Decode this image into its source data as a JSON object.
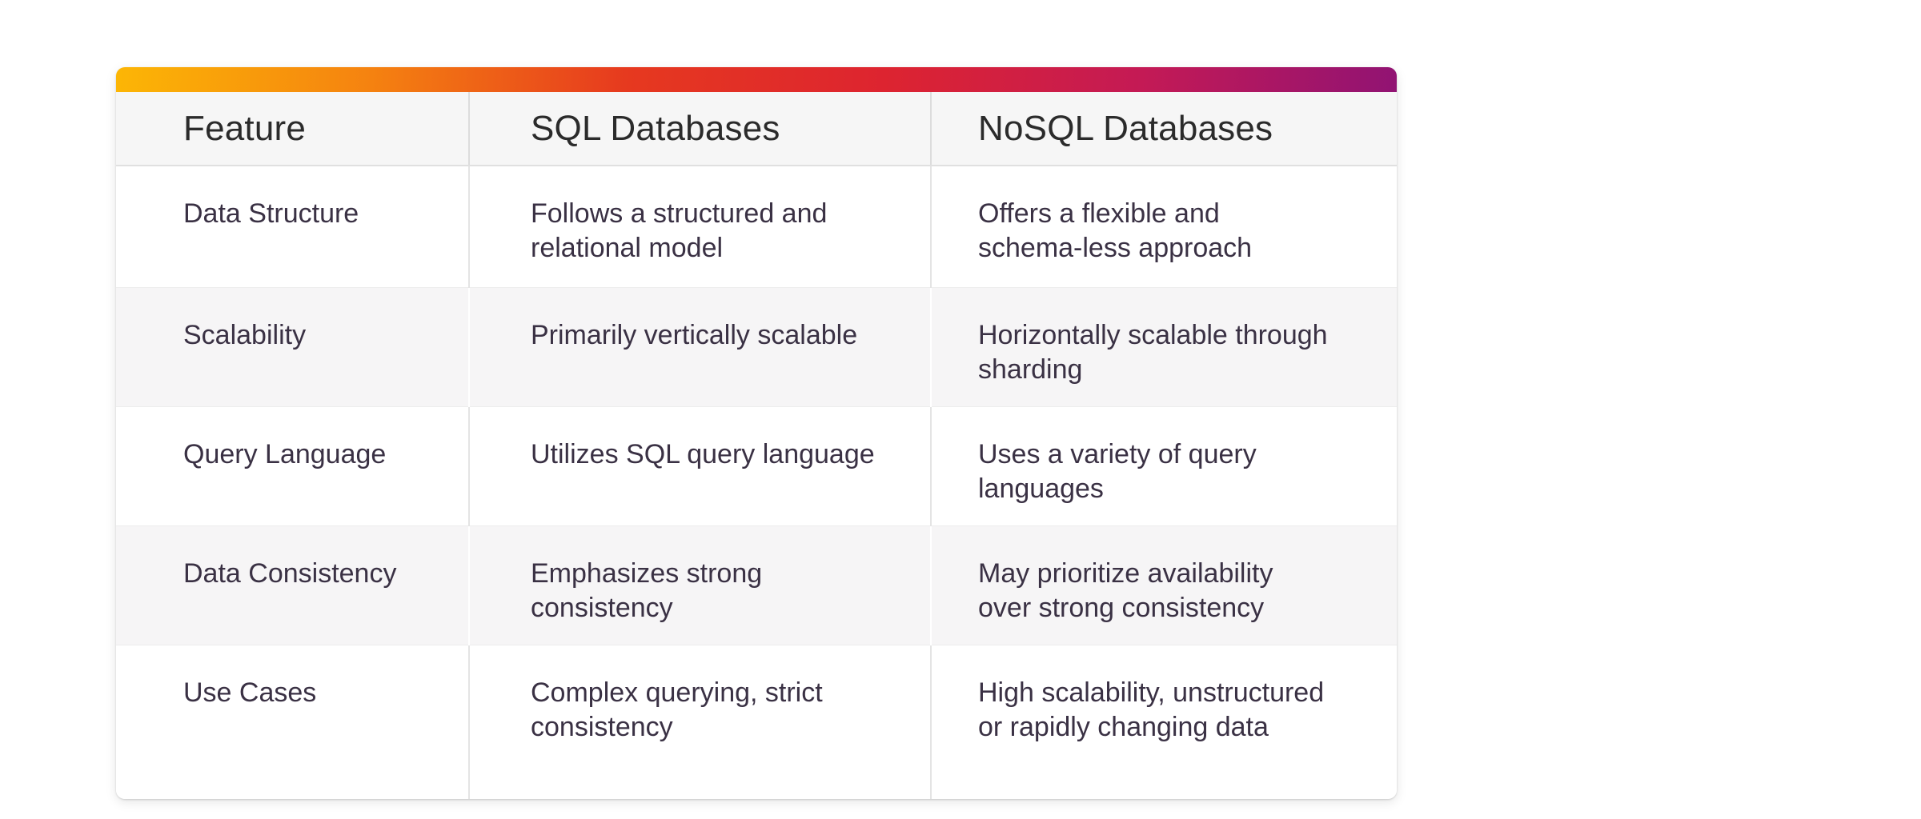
{
  "table": {
    "headers": [
      "Feature",
      "SQL Databases",
      "NoSQL Databases"
    ],
    "rows": [
      [
        "Data Structure",
        "Follows a structured and\nrelational model",
        "Offers a flexible and\nschema-less approach"
      ],
      [
        "Scalability",
        "Primarily vertically scalable",
        "Horizontally scalable through\nsharding"
      ],
      [
        "Query Language",
        "Utilizes SQL query language",
        "Uses a variety of query\nlanguages"
      ],
      [
        "Data Consistency",
        "Emphasizes strong\nconsistency",
        "May prioritize availability\nover strong consistency"
      ],
      [
        "Use Cases",
        "Complex querying, strict\nconsistency",
        "High scalability, unstructured\nor rapidly changing data"
      ]
    ]
  },
  "colors": {
    "gradient_stops": [
      "#fcb605",
      "#f58210",
      "#e6391f",
      "#dd2430",
      "#c41a55",
      "#911373"
    ],
    "gradient_angle": "94deg",
    "header_bg": "#f6f6f6",
    "row_alt_bg": "#f6f5f6",
    "header_text": "#2b2b2b",
    "body_text": "#3a3144",
    "divider_on_white": "#e4e4e4",
    "divider_on_gray": "#ffffff",
    "header_divider": "#dcdcdc"
  }
}
